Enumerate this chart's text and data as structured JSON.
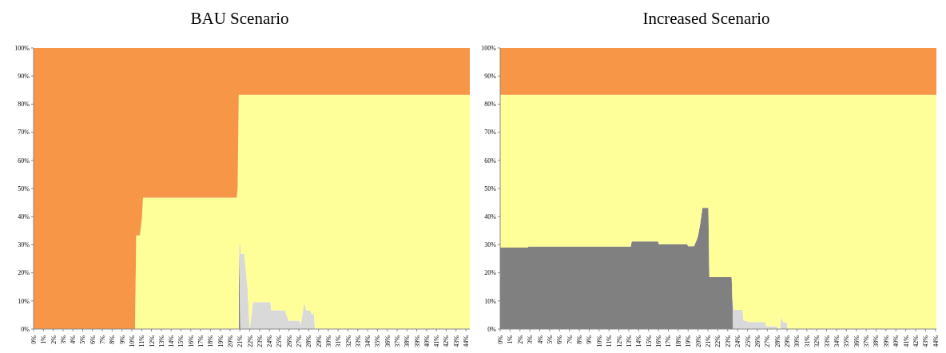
{
  "chart_data": [
    {
      "type": "area",
      "title": "BAU Scenario",
      "stacked": true,
      "xlim": [
        0,
        44.4
      ],
      "ylim": [
        0,
        100
      ],
      "xticks": [
        {
          "value": 0,
          "label": "0%"
        },
        {
          "value": 1,
          "label": "1%"
        },
        {
          "value": 2,
          "label": "2%"
        },
        {
          "value": 3,
          "label": "3%"
        },
        {
          "value": 4,
          "label": "4%"
        },
        {
          "value": 5,
          "label": "5%"
        },
        {
          "value": 6,
          "label": "6%"
        },
        {
          "value": 7,
          "label": "7%"
        },
        {
          "value": 8,
          "label": "8%"
        },
        {
          "value": 9,
          "label": "9%"
        },
        {
          "value": 10,
          "label": "10%"
        },
        {
          "value": 11,
          "label": "11%"
        },
        {
          "value": 12,
          "label": "12%"
        },
        {
          "value": 13,
          "label": "13%"
        },
        {
          "value": 14,
          "label": "14%"
        },
        {
          "value": 15,
          "label": "15%"
        },
        {
          "value": 16,
          "label": "16%"
        },
        {
          "value": 17,
          "label": "17%"
        },
        {
          "value": 18,
          "label": "18%"
        },
        {
          "value": 19,
          "label": "19%"
        },
        {
          "value": 20,
          "label": "20%"
        },
        {
          "value": 21,
          "label": "21%"
        },
        {
          "value": 22,
          "label": "22%"
        },
        {
          "value": 23,
          "label": "23%"
        },
        {
          "value": 24,
          "label": "24%"
        },
        {
          "value": 25,
          "label": "25%"
        },
        {
          "value": 26,
          "label": "26%"
        },
        {
          "value": 27,
          "label": "27%"
        },
        {
          "value": 28,
          "label": "28%"
        },
        {
          "value": 29,
          "label": "29%"
        },
        {
          "value": 30,
          "label": "30%"
        },
        {
          "value": 31,
          "label": "31%"
        },
        {
          "value": 32,
          "label": "32%"
        },
        {
          "value": 33,
          "label": "33%"
        },
        {
          "value": 34,
          "label": "34%"
        },
        {
          "value": 35,
          "label": "35%"
        },
        {
          "value": 36,
          "label": "36%"
        },
        {
          "value": 37,
          "label": "37%"
        },
        {
          "value": 38,
          "label": "38%"
        },
        {
          "value": 39,
          "label": "39%"
        },
        {
          "value": 40,
          "label": "40%"
        },
        {
          "value": 41,
          "label": "41%"
        },
        {
          "value": 42,
          "label": "42%"
        },
        {
          "value": 43,
          "label": "43%"
        },
        {
          "value": 44,
          "label": "44%"
        }
      ],
      "yticks": [
        {
          "value": 0,
          "label": "0%"
        },
        {
          "value": 10,
          "label": "10%"
        },
        {
          "value": 20,
          "label": "20%"
        },
        {
          "value": 30,
          "label": "30%"
        },
        {
          "value": 40,
          "label": "40%"
        },
        {
          "value": 50,
          "label": "50%"
        },
        {
          "value": 60,
          "label": "60%"
        },
        {
          "value": 70,
          "label": "70%"
        },
        {
          "value": 80,
          "label": "80%"
        },
        {
          "value": 90,
          "label": "90%"
        },
        {
          "value": 100,
          "label": "100%"
        }
      ],
      "x": [
        0,
        10.32,
        10.45,
        10.82,
        11.04,
        11.13,
        20.68,
        20.77,
        20.88,
        20.93,
        21.05,
        21.08,
        21.45,
        21.77,
        22.0,
        22.33,
        24.1,
        24.19,
        25.56,
        25.96,
        27.05,
        27.2,
        27.55,
        27.74,
        28.17,
        28.3,
        28.55,
        28.64,
        44.4
      ],
      "series": [
        {
          "color": "#808080",
          "values": [
            null,
            null,
            null,
            null,
            null,
            null,
            null,
            null,
            0,
            30,
            0,
            null,
            null,
            null,
            null,
            null,
            null,
            null,
            null,
            null,
            null,
            null,
            null,
            null,
            null,
            null,
            null,
            null,
            null
          ]
        },
        {
          "color": "#d9d9d9",
          "values": [
            null,
            null,
            null,
            null,
            null,
            null,
            null,
            null,
            null,
            0,
            30,
            26.7,
            26.7,
            15,
            0,
            9.6,
            9.6,
            6.7,
            6.7,
            3,
            3,
            1.5,
            9.5,
            6.5,
            6.5,
            5.3,
            5.3,
            0,
            null
          ]
        },
        {
          "color": "#ffff99",
          "values": [
            0,
            0,
            33.3,
            33.3,
            40,
            46.7,
            46.7,
            50,
            83.3,
            53.3,
            53.3,
            56.6,
            56.6,
            68.3,
            83.3,
            73.7,
            73.7,
            76.6,
            76.6,
            80.3,
            80.3,
            81.8,
            73.8,
            76.8,
            76.8,
            78,
            78,
            83.3,
            83.3
          ]
        },
        {
          "color": "#f79646",
          "values": [
            100,
            100,
            66.7,
            66.7,
            60,
            53.3,
            53.3,
            50,
            16.7,
            16.7,
            16.7,
            16.7,
            16.7,
            16.7,
            16.7,
            16.7,
            16.7,
            16.7,
            16.7,
            16.7,
            16.7,
            16.7,
            16.7,
            16.7,
            16.7,
            16.7,
            16.7,
            16.7,
            16.7
          ]
        }
      ]
    },
    {
      "type": "area",
      "title": "Increased Scenario",
      "stacked": true,
      "xlim": [
        0,
        44.1
      ],
      "ylim": [
        0,
        100
      ],
      "xticks": [
        {
          "value": 0,
          "label": "0%"
        },
        {
          "value": 1,
          "label": "1%"
        },
        {
          "value": 2,
          "label": "2%"
        },
        {
          "value": 3,
          "label": "3%"
        },
        {
          "value": 4,
          "label": "4%"
        },
        {
          "value": 5,
          "label": "5%"
        },
        {
          "value": 6,
          "label": "6%"
        },
        {
          "value": 7,
          "label": "7%"
        },
        {
          "value": 8,
          "label": "8%"
        },
        {
          "value": 9,
          "label": "9%"
        },
        {
          "value": 10,
          "label": "10%"
        },
        {
          "value": 11,
          "label": "11%"
        },
        {
          "value": 12,
          "label": "12%"
        },
        {
          "value": 13,
          "label": "13%"
        },
        {
          "value": 14,
          "label": "14%"
        },
        {
          "value": 15,
          "label": "15%"
        },
        {
          "value": 16,
          "label": "16%"
        },
        {
          "value": 17,
          "label": "17%"
        },
        {
          "value": 18,
          "label": "18%"
        },
        {
          "value": 19,
          "label": "19%"
        },
        {
          "value": 20,
          "label": "20%"
        },
        {
          "value": 21,
          "label": "21%"
        },
        {
          "value": 22,
          "label": "22%"
        },
        {
          "value": 23,
          "label": "23%"
        },
        {
          "value": 24,
          "label": "24%"
        },
        {
          "value": 25,
          "label": "25%"
        },
        {
          "value": 26,
          "label": "26%"
        },
        {
          "value": 27,
          "label": "27%"
        },
        {
          "value": 28,
          "label": "28%"
        },
        {
          "value": 29,
          "label": "29%"
        },
        {
          "value": 30,
          "label": "30%"
        },
        {
          "value": 31,
          "label": "31%"
        },
        {
          "value": 32,
          "label": "32%"
        },
        {
          "value": 33,
          "label": "33%"
        },
        {
          "value": 34,
          "label": "34%"
        },
        {
          "value": 35,
          "label": "35%"
        },
        {
          "value": 36,
          "label": "36%"
        },
        {
          "value": 37,
          "label": "37%"
        },
        {
          "value": 38,
          "label": "38%"
        },
        {
          "value": 39,
          "label": "39%"
        },
        {
          "value": 40,
          "label": "40%"
        },
        {
          "value": 41,
          "label": "41%"
        },
        {
          "value": 42,
          "label": "42%"
        },
        {
          "value": 43,
          "label": "43%"
        },
        {
          "value": 44,
          "label": "44%"
        }
      ],
      "yticks": [
        {
          "value": 0,
          "label": "0%"
        },
        {
          "value": 10,
          "label": "10%"
        },
        {
          "value": 20,
          "label": "20%"
        },
        {
          "value": 30,
          "label": "30%"
        },
        {
          "value": 40,
          "label": "40%"
        },
        {
          "value": 50,
          "label": "50%"
        },
        {
          "value": 60,
          "label": "60%"
        },
        {
          "value": 70,
          "label": "70%"
        },
        {
          "value": 80,
          "label": "80%"
        },
        {
          "value": 90,
          "label": "90%"
        },
        {
          "value": 100,
          "label": "100%"
        }
      ],
      "x": [
        0,
        2.8,
        2.85,
        13.2,
        13.3,
        15.95,
        16.05,
        18.9,
        19.0,
        19.6,
        19.9,
        20.0,
        20.2,
        20.45,
        21.05,
        21.15,
        23.4,
        23.48,
        23.55,
        23.6,
        24.5,
        24.6,
        24.95,
        25.05,
        26.8,
        26.9,
        28.0,
        28.05,
        28.3,
        28.4,
        28.6,
        29.0,
        29.05,
        44.1
      ],
      "series": [
        {
          "color": "#808080",
          "values": [
            29,
            29,
            29.3,
            29.3,
            31.2,
            31.2,
            30.2,
            30.2,
            29.5,
            29.5,
            32,
            33.2,
            37,
            43.1,
            43.1,
            18.5,
            18.5,
            10.5,
            0,
            null,
            null,
            null,
            null,
            null,
            null,
            null,
            null,
            null,
            null,
            null,
            null,
            null,
            null,
            null
          ]
        },
        {
          "color": "#d9d9d9",
          "values": [
            null,
            null,
            null,
            null,
            null,
            null,
            null,
            null,
            null,
            null,
            null,
            null,
            null,
            null,
            null,
            null,
            null,
            0,
            10,
            6.8,
            6.8,
            3,
            3,
            2.5,
            2.5,
            1,
            1,
            0,
            0,
            4.5,
            2.5,
            2.3,
            0,
            null
          ]
        },
        {
          "color": "#ffff99",
          "values": [
            54.3,
            54.3,
            54,
            54,
            52.1,
            52.1,
            53.1,
            53.1,
            53.8,
            53.8,
            51.3,
            50.1,
            46.3,
            40.2,
            40.2,
            64.8,
            64.8,
            72.8,
            73.3,
            76.5,
            76.5,
            80.3,
            80.3,
            80.8,
            80.8,
            82.3,
            82.3,
            83.3,
            83.3,
            78.8,
            80.8,
            81,
            83.3,
            83.3
          ]
        },
        {
          "color": "#f79646",
          "values": [
            16.7,
            16.7,
            16.7,
            16.7,
            16.7,
            16.7,
            16.7,
            16.7,
            16.7,
            16.7,
            16.7,
            16.7,
            16.7,
            16.7,
            16.7,
            16.7,
            16.7,
            16.7,
            16.7,
            16.7,
            16.7,
            16.7,
            16.7,
            16.7,
            16.7,
            16.7,
            16.7,
            16.7,
            16.7,
            16.7,
            16.7,
            16.7,
            16.7,
            16.7
          ]
        }
      ]
    }
  ]
}
